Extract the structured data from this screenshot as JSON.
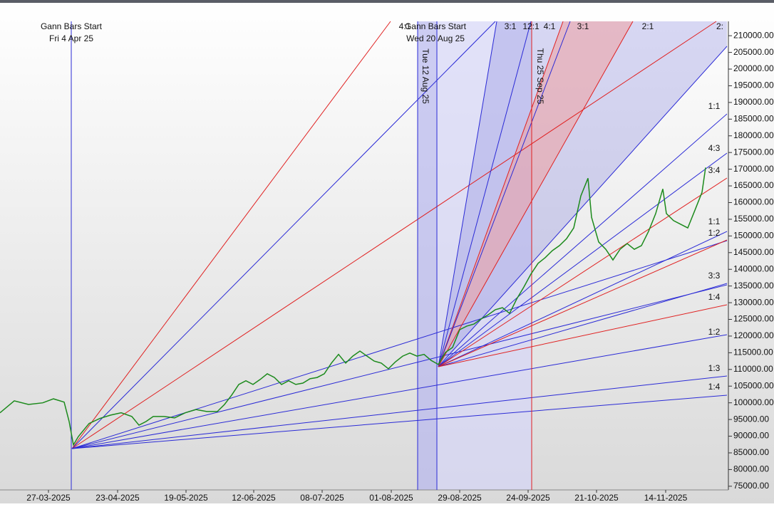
{
  "chart_data": {
    "type": "line",
    "color": "#1c8a1c",
    "x": [
      0,
      4,
      8,
      12,
      15,
      18,
      19.4,
      20.6,
      22,
      25,
      28,
      31,
      34,
      37,
      39,
      41,
      43,
      46,
      49,
      52,
      55,
      58,
      61,
      63,
      65,
      67,
      69,
      71,
      73,
      75,
      77,
      79,
      81,
      83,
      85,
      87,
      89,
      91,
      93,
      95,
      97,
      99,
      101,
      103,
      105,
      107,
      109,
      111,
      113,
      115,
      117,
      119,
      121,
      123,
      125,
      127,
      129,
      131,
      133,
      135,
      137,
      139,
      141,
      143,
      145,
      147,
      149,
      151,
      153,
      155,
      157,
      159,
      161,
      163,
      165,
      166,
      168,
      170,
      172,
      174,
      176,
      178,
      180,
      182,
      184,
      186,
      187,
      189,
      191,
      193,
      195,
      197,
      198
    ],
    "values": [
      97000,
      100600,
      99500,
      100000,
      101200,
      100200,
      94400,
      87400,
      89900,
      93800,
      95300,
      96300,
      97000,
      95900,
      93300,
      94400,
      95900,
      95900,
      95500,
      97000,
      98000,
      97400,
      97400,
      99500,
      102300,
      105500,
      106600,
      105500,
      107000,
      108700,
      107600,
      105500,
      106600,
      105500,
      105900,
      107200,
      107600,
      108700,
      111900,
      114500,
      111900,
      114000,
      115500,
      114000,
      112500,
      111900,
      110200,
      112300,
      114000,
      114900,
      114000,
      114500,
      112700,
      111500,
      115100,
      116600,
      121900,
      123000,
      123600,
      125100,
      126400,
      127900,
      128500,
      126800,
      131100,
      134700,
      138600,
      141800,
      143500,
      145600,
      147100,
      149200,
      152400,
      162000,
      167300,
      155600,
      148200,
      146000,
      142800,
      146000,
      147700,
      146000,
      147100,
      151400,
      156700,
      164100,
      156700,
      154600,
      153500,
      152400,
      157700,
      163100,
      170500
    ],
    "xlim": [
      0,
      204
    ],
    "xticks": [
      {
        "value": 13.6,
        "label": "27-03-2025"
      },
      {
        "value": 33,
        "label": "23-04-2025"
      },
      {
        "value": 52.2,
        "label": "19-05-2025"
      },
      {
        "value": 71.2,
        "label": "12-06-2025"
      },
      {
        "value": 90.4,
        "label": "08-07-2025"
      },
      {
        "value": 109.8,
        "label": "01-08-2025"
      },
      {
        "value": 129,
        "label": "29-08-2025"
      },
      {
        "value": 148.2,
        "label": "24-09-2025"
      },
      {
        "value": 167.4,
        "label": "21-10-2025"
      },
      {
        "value": 186.8,
        "label": "14-11-2025"
      }
    ],
    "ylim": [
      73900,
      214300
    ],
    "yticks": [
      {
        "value": 210000,
        "label": "210000.00"
      },
      {
        "value": 205000,
        "label": "205000.00"
      },
      {
        "value": 200000,
        "label": "200000.00"
      },
      {
        "value": 195000,
        "label": "195000.00"
      },
      {
        "value": 190000,
        "label": "190000.00"
      },
      {
        "value": 185000,
        "label": "185000.00"
      },
      {
        "value": 180000,
        "label": "180000.00"
      },
      {
        "value": 175000,
        "label": "175000.00"
      },
      {
        "value": 170000,
        "label": "170000.00"
      },
      {
        "value": 165000,
        "label": "165000.00"
      },
      {
        "value": 160000,
        "label": "160000.00"
      },
      {
        "value": 155000,
        "label": "155000.00"
      },
      {
        "value": 150000,
        "label": "150000.00"
      },
      {
        "value": 145000,
        "label": "145000.00"
      },
      {
        "value": 140000,
        "label": "140000.00"
      },
      {
        "value": 135000,
        "label": "135000.00"
      },
      {
        "value": 130000,
        "label": "130000.00"
      },
      {
        "value": 125000,
        "label": "125000.00"
      },
      {
        "value": 120000,
        "label": "120000.00"
      },
      {
        "value": 115000,
        "label": "115000.00"
      },
      {
        "value": 110000,
        "label": "110000.00"
      },
      {
        "value": 105000,
        "label": "105000.00"
      },
      {
        "value": 100000,
        "label": "100000.00"
      },
      {
        "value": 95000,
        "label": "95000.00"
      },
      {
        "value": 90000,
        "label": "90000.00"
      },
      {
        "value": 85000,
        "label": "85000.00"
      },
      {
        "value": 80000,
        "label": "80000.00"
      },
      {
        "value": 75000,
        "label": "75000.00"
      }
    ],
    "annotations": [
      "Gann Bars Start",
      "Fri 4 Apr 25",
      "Gann Bars Start",
      "Wed 20 Aug 25",
      "Tue 12 Aug 25",
      "Thu 25 Sep 25"
    ],
    "fan_labels": [
      "4:1",
      "3:1",
      "12:1",
      "4:1",
      "3:1",
      "2:1",
      "2:",
      "1:1",
      "4:3",
      "3:4",
      "1:1",
      "1:2",
      "3:3",
      "1:4",
      "1:2",
      "1:3",
      "1:4"
    ]
  }
}
